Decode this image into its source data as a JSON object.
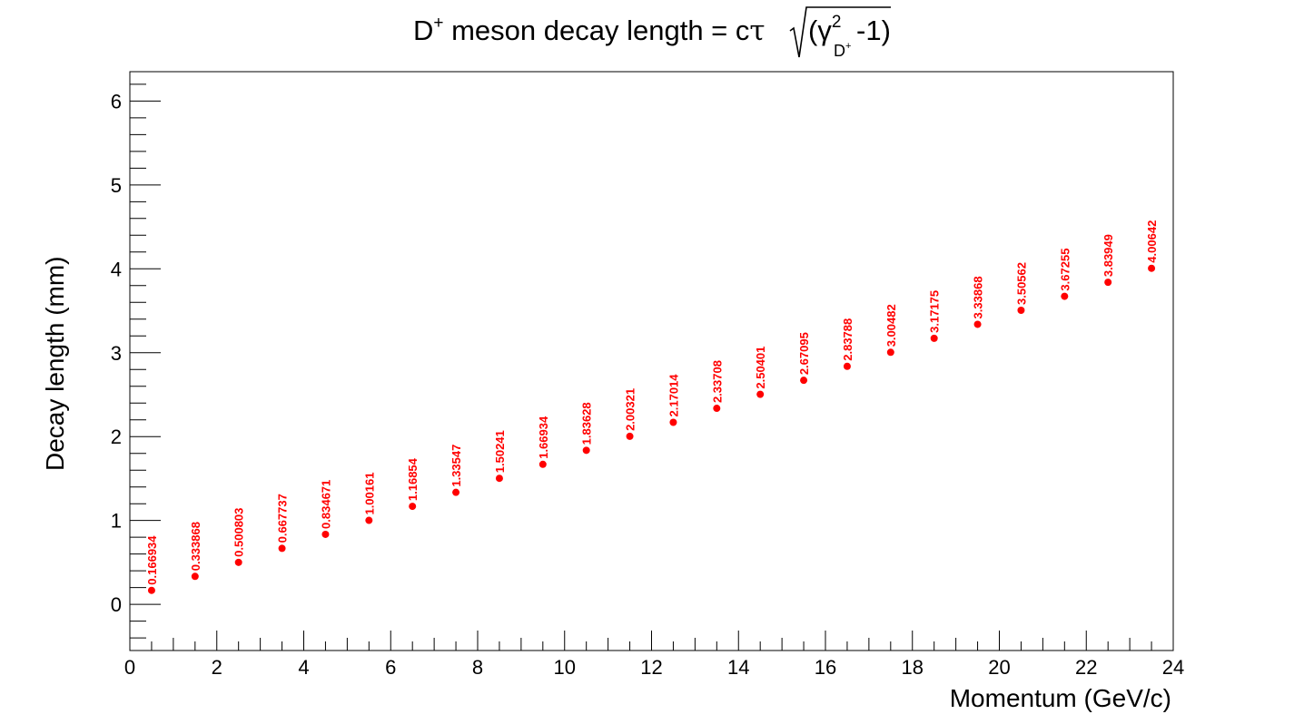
{
  "chart_data": {
    "type": "scatter",
    "title": {
      "prefix": "D",
      "prefix_sup": "+",
      "middle": " meson decay length = c",
      "tau": "τ",
      "gamma": "(γ",
      "gamma_sup": "2",
      "gamma_sub": "D",
      "gamma_sub_sup": "+",
      "suffix": "-1)"
    },
    "xlabel": "Momentum (GeV/c)",
    "ylabel": "Decay length (mm)",
    "xlim": [
      0,
      24
    ],
    "ylim": [
      -0.55,
      6.35
    ],
    "x_ticks": [
      "0",
      "2",
      "4",
      "6",
      "8",
      "10",
      "12",
      "14",
      "16",
      "18",
      "20",
      "22",
      "24"
    ],
    "y_ticks": [
      "0",
      "1",
      "2",
      "3",
      "4",
      "5",
      "6"
    ],
    "marker_color": "#ff0000",
    "points": [
      {
        "x": 0.5,
        "y": 0.166934,
        "label": "0.166934"
      },
      {
        "x": 1.5,
        "y": 0.333868,
        "label": "0.333868"
      },
      {
        "x": 2.5,
        "y": 0.500803,
        "label": "0.500803"
      },
      {
        "x": 3.5,
        "y": 0.667737,
        "label": "0.667737"
      },
      {
        "x": 4.5,
        "y": 0.834671,
        "label": "0.834671"
      },
      {
        "x": 5.5,
        "y": 1.00161,
        "label": "1.00161"
      },
      {
        "x": 6.5,
        "y": 1.16854,
        "label": "1.16854"
      },
      {
        "x": 7.5,
        "y": 1.33547,
        "label": "1.33547"
      },
      {
        "x": 8.5,
        "y": 1.50241,
        "label": "1.50241"
      },
      {
        "x": 9.5,
        "y": 1.66934,
        "label": "1.66934"
      },
      {
        "x": 10.5,
        "y": 1.83628,
        "label": "1.83628"
      },
      {
        "x": 11.5,
        "y": 2.00321,
        "label": "2.00321"
      },
      {
        "x": 12.5,
        "y": 2.17014,
        "label": "2.17014"
      },
      {
        "x": 13.5,
        "y": 2.33708,
        "label": "2.33708"
      },
      {
        "x": 14.5,
        "y": 2.50401,
        "label": "2.50401"
      },
      {
        "x": 15.5,
        "y": 2.67095,
        "label": "2.67095"
      },
      {
        "x": 16.5,
        "y": 2.83788,
        "label": "2.83788"
      },
      {
        "x": 17.5,
        "y": 3.00482,
        "label": "3.00482"
      },
      {
        "x": 18.5,
        "y": 3.17175,
        "label": "3.17175"
      },
      {
        "x": 19.5,
        "y": 3.33868,
        "label": "3.33868"
      },
      {
        "x": 20.5,
        "y": 3.50562,
        "label": "3.50562"
      },
      {
        "x": 21.5,
        "y": 3.67255,
        "label": "3.67255"
      },
      {
        "x": 22.5,
        "y": 3.83949,
        "label": "3.83949"
      },
      {
        "x": 23.5,
        "y": 4.00642,
        "label": "4.00642"
      }
    ]
  }
}
